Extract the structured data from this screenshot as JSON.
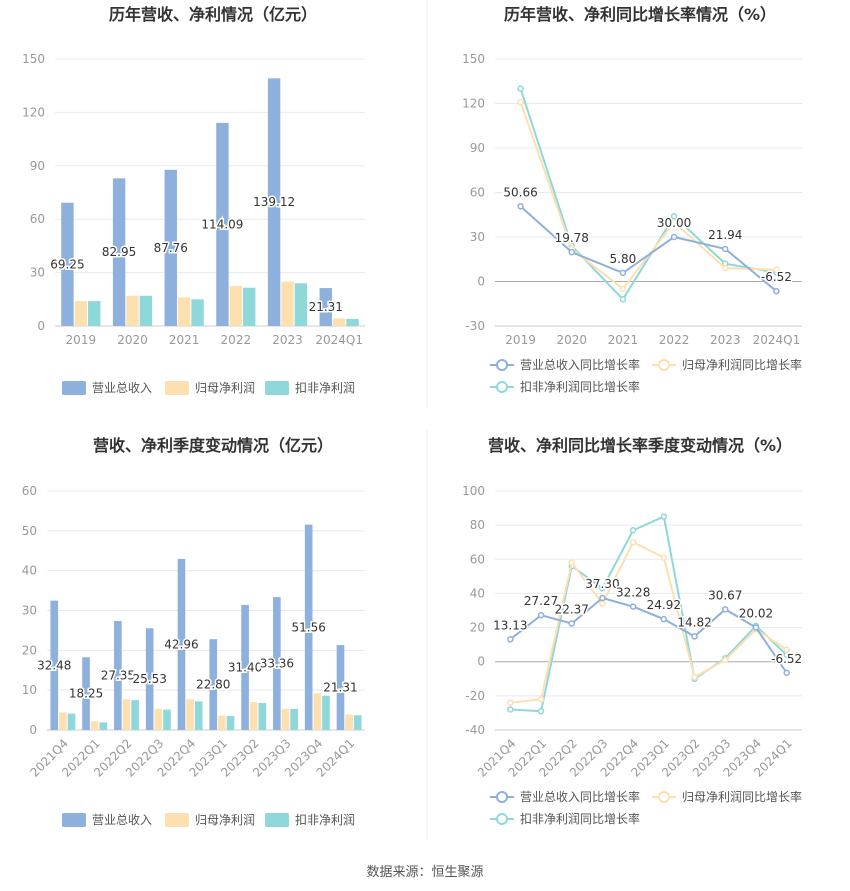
{
  "source": "数据来源：恒生聚源",
  "colors": {
    "revenue": "#8eb0dc",
    "parent_profit": "#fde0b0",
    "deducted_profit": "#8ed8da",
    "grid": "#e8e8f0",
    "axis": "#cccccc",
    "tick": "#999999"
  },
  "chart_data": [
    {
      "id": "annual-amount",
      "type": "bar",
      "title": "历年营收、净利情况（亿元）",
      "categories": [
        "2019",
        "2020",
        "2021",
        "2022",
        "2023",
        "2024Q1"
      ],
      "ylim": [
        0,
        150
      ],
      "yticks": [
        0,
        30,
        60,
        90,
        120,
        150
      ],
      "grid": true,
      "legend": "bottom",
      "labeled_series": 0,
      "series": [
        {
          "name": "营业总收入",
          "values": [
            69.25,
            82.95,
            87.76,
            114.09,
            139.12,
            21.31
          ],
          "labels": [
            "69.25",
            "82.95",
            "87.76",
            "114.09",
            "139.12",
            "21.31"
          ]
        },
        {
          "name": "归母净利润",
          "values": [
            14,
            17,
            16,
            22.5,
            25,
            4.2
          ]
        },
        {
          "name": "扣非净利润",
          "values": [
            14,
            17,
            15,
            21.5,
            24,
            4.0
          ]
        }
      ]
    },
    {
      "id": "annual-growth",
      "type": "line",
      "title": "历年营收、净利同比增长率情况（%）",
      "categories": [
        "2019",
        "2020",
        "2021",
        "2022",
        "2023",
        "2024Q1"
      ],
      "ylim": [
        -30,
        150
      ],
      "yticks": [
        -30,
        0,
        30,
        60,
        90,
        120,
        150
      ],
      "grid": true,
      "legend": "bottom",
      "labeled_series": 0,
      "series": [
        {
          "name": "营业总收入同比增长率",
          "values": [
            50.66,
            19.78,
            5.8,
            30.0,
            21.94,
            -6.52
          ],
          "labels": [
            "50.66",
            "19.78",
            "5.80",
            "30.00",
            "21.94",
            "-6.52"
          ]
        },
        {
          "name": "归母净利润同比增长率",
          "values": [
            121,
            22,
            -5,
            40,
            9,
            8
          ]
        },
        {
          "name": "扣非净利润同比增长率",
          "values": [
            130,
            24,
            -12,
            44,
            12,
            6
          ]
        }
      ]
    },
    {
      "id": "quarterly-amount",
      "type": "bar",
      "title": "营收、净利季度变动情况（亿元）",
      "categories": [
        "2021Q4",
        "2022Q1",
        "2022Q2",
        "2022Q3",
        "2022Q4",
        "2023Q1",
        "2023Q2",
        "2023Q3",
        "2023Q4",
        "2024Q1"
      ],
      "ylim": [
        0,
        60
      ],
      "yticks": [
        0,
        10,
        20,
        30,
        40,
        50,
        60
      ],
      "grid": true,
      "legend": "bottom",
      "labeled_series": 0,
      "series": [
        {
          "name": "营业总收入",
          "values": [
            32.48,
            18.25,
            27.35,
            25.53,
            42.96,
            22.8,
            31.4,
            33.36,
            51.56,
            21.31
          ],
          "labels": [
            "32.48",
            "18.25",
            "27.35",
            "25.53",
            "42.96",
            "22.80",
            "31.40",
            "33.36",
            "51.56",
            "21.31"
          ]
        },
        {
          "name": "归母净利润",
          "values": [
            4.4,
            2.2,
            7.7,
            5.3,
            7.7,
            3.6,
            7.0,
            5.3,
            9.2,
            3.9
          ]
        },
        {
          "name": "扣非净利润",
          "values": [
            4.1,
            1.9,
            7.5,
            5.1,
            7.2,
            3.5,
            6.8,
            5.3,
            8.6,
            3.7
          ]
        }
      ]
    },
    {
      "id": "quarterly-growth",
      "type": "line",
      "title": "营收、净利同比增长率季度变动情况（%）",
      "categories": [
        "2021Q4",
        "2022Q1",
        "2022Q2",
        "2022Q3",
        "2022Q4",
        "2023Q1",
        "2023Q2",
        "2023Q3",
        "2023Q4",
        "2024Q1"
      ],
      "ylim": [
        -40,
        100
      ],
      "yticks": [
        -40,
        -20,
        0,
        20,
        40,
        60,
        80,
        100
      ],
      "grid": true,
      "legend": "bottom",
      "labeled_series": 0,
      "series": [
        {
          "name": "营业总收入同比增长率",
          "values": [
            13.13,
            27.27,
            22.37,
            37.3,
            32.28,
            24.92,
            14.82,
            30.67,
            20.02,
            -6.52
          ],
          "labels": [
            "13.13",
            "27.27",
            "22.37",
            "37.30",
            "32.28",
            "24.92",
            "14.82",
            "30.67",
            "20.02",
            "-6.52"
          ]
        },
        {
          "name": "归母净利润同比增长率",
          "values": [
            -24,
            -22,
            58,
            34,
            70,
            61,
            -9,
            1,
            19,
            7
          ]
        },
        {
          "name": "扣非净利润同比增长率",
          "values": [
            -28,
            -29,
            56,
            43,
            77,
            85,
            -10,
            2,
            21,
            4
          ]
        }
      ]
    }
  ]
}
